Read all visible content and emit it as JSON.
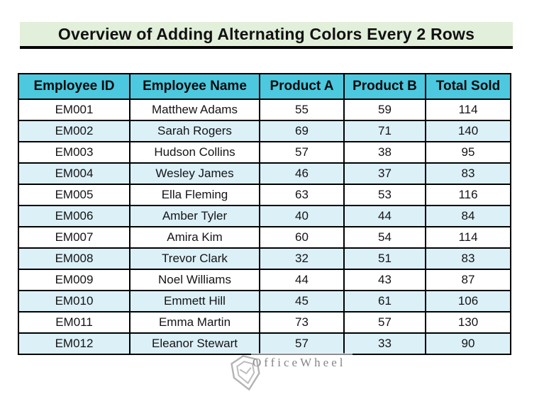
{
  "header": {
    "title": "Overview of Adding Alternating Colors Every 2 Rows"
  },
  "table": {
    "columns": [
      "Employee ID",
      "Employee Name",
      "Product A",
      "Product B",
      "Total Sold"
    ],
    "rows": [
      [
        "EM001",
        "Matthew Adams",
        "55",
        "59",
        "114"
      ],
      [
        "EM002",
        "Sarah Rogers",
        "69",
        "71",
        "140"
      ],
      [
        "EM003",
        "Hudson Collins",
        "57",
        "38",
        "95"
      ],
      [
        "EM004",
        "Wesley James",
        "46",
        "37",
        "83"
      ],
      [
        "EM005",
        "Ella Fleming",
        "63",
        "53",
        "116"
      ],
      [
        "EM006",
        "Amber Tyler",
        "40",
        "44",
        "84"
      ],
      [
        "EM007",
        "Amira Kim",
        "60",
        "54",
        "114"
      ],
      [
        "EM008",
        "Trevor Clark",
        "32",
        "51",
        "83"
      ],
      [
        "EM009",
        "Noel Williams",
        "44",
        "43",
        "87"
      ],
      [
        "EM010",
        "Emmett Hill",
        "45",
        "61",
        "106"
      ],
      [
        "EM011",
        "Emma Martin",
        "73",
        "57",
        "130"
      ],
      [
        "EM012",
        "Eleanor Stewart",
        "57",
        "33",
        "90"
      ]
    ],
    "shaded_row_ids": [
      "EM002",
      "EM004",
      "EM006",
      "EM008",
      "EM010",
      "EM012"
    ]
  },
  "chart_data": {
    "type": "table",
    "title": "Overview of Adding Alternating Colors Every 2 Rows",
    "columns": [
      "Employee ID",
      "Employee Name",
      "Product A",
      "Product B",
      "Total Sold"
    ],
    "rows": [
      {
        "employee_id": "EM001",
        "employee_name": "Matthew Adams",
        "product_a": 55,
        "product_b": 59,
        "total_sold": 114
      },
      {
        "employee_id": "EM002",
        "employee_name": "Sarah Rogers",
        "product_a": 69,
        "product_b": 71,
        "total_sold": 140
      },
      {
        "employee_id": "EM003",
        "employee_name": "Hudson Collins",
        "product_a": 57,
        "product_b": 38,
        "total_sold": 95
      },
      {
        "employee_id": "EM004",
        "employee_name": "Wesley James",
        "product_a": 46,
        "product_b": 37,
        "total_sold": 83
      },
      {
        "employee_id": "EM005",
        "employee_name": "Ella Fleming",
        "product_a": 63,
        "product_b": 53,
        "total_sold": 116
      },
      {
        "employee_id": "EM006",
        "employee_name": "Amber Tyler",
        "product_a": 40,
        "product_b": 44,
        "total_sold": 84
      },
      {
        "employee_id": "EM007",
        "employee_name": "Amira Kim",
        "product_a": 60,
        "product_b": 54,
        "total_sold": 114
      },
      {
        "employee_id": "EM008",
        "employee_name": "Trevor Clark",
        "product_a": 32,
        "product_b": 51,
        "total_sold": 83
      },
      {
        "employee_id": "EM009",
        "employee_name": "Noel Williams",
        "product_a": 44,
        "product_b": 43,
        "total_sold": 87
      },
      {
        "employee_id": "EM010",
        "employee_name": "Emmett Hill",
        "product_a": 45,
        "product_b": 61,
        "total_sold": 106
      },
      {
        "employee_id": "EM011",
        "employee_name": "Emma Martin",
        "product_a": 73,
        "product_b": 57,
        "total_sold": 130
      },
      {
        "employee_id": "EM012",
        "employee_name": "Eleanor Stewart",
        "product_a": 57,
        "product_b": 33,
        "total_sold": 90
      }
    ],
    "layout": "banded rows, pale-blue shading on even-numbered employees, cyan header row"
  },
  "watermark": {
    "text": "OfficeWheel",
    "icon": "officewheel-shield-logo-icon"
  },
  "colors": {
    "title_bg": "#e2efda",
    "header_bg": "#4cc8df",
    "band_bg": "#dcf0f8",
    "border": "#000000",
    "watermark": "#8b8b8b"
  }
}
